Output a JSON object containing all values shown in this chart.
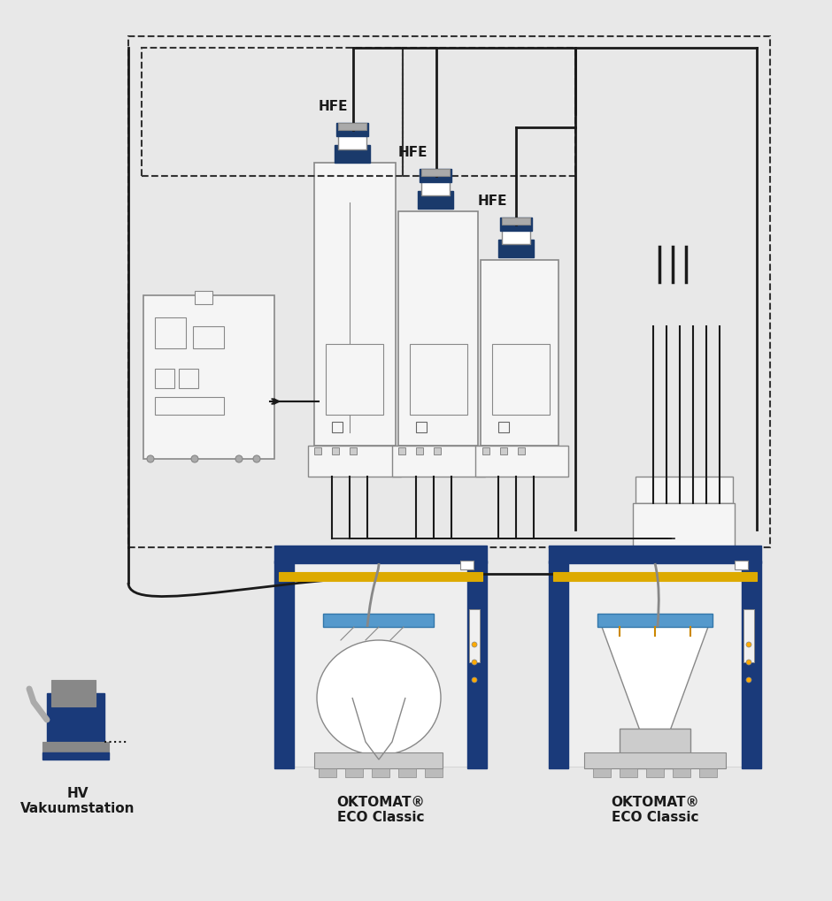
{
  "bg_color": "#e8e8e8",
  "line_color": "#1a1a1a",
  "blue_color": "#1a3a6b",
  "light_blue": "#4488cc",
  "device_fill": "#f5f5f5",
  "device_stroke": "#888888",
  "dashed_color": "#333333",
  "label_hv": "HV\nVakuumstation",
  "label_okto1": "OKTOMAT®\nECO Classic",
  "label_okto2": "OKTOMAT®\nECO Classic",
  "label_hfe1": "HFE",
  "label_hfe2": "HFE",
  "label_hfe3": "HFE",
  "fig_width": 9.4,
  "fig_height": 10.2
}
